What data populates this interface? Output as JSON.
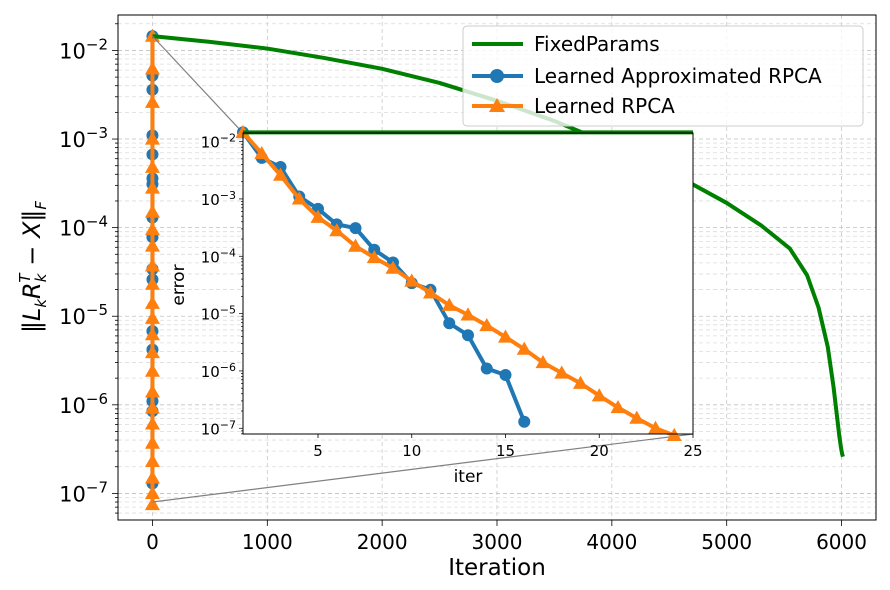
{
  "chart_data": [
    {
      "type": "line",
      "role": "main",
      "xlabel": "Iteration",
      "ylabel_parts": {
        "open": "‖L",
        "k1": "k",
        "R": "R",
        "kT_k": "k",
        "kT_T": "T",
        "minus": " − X‖",
        "F": "F"
      },
      "xlim": [
        -300,
        6300
      ],
      "ylim_log10": [
        -7.3,
        -1.6
      ],
      "xticks": [
        0,
        1000,
        2000,
        3000,
        4000,
        5000,
        6000
      ],
      "yticks_exponents": [
        -2,
        -3,
        -4,
        -5,
        -6,
        -7
      ],
      "grid": true,
      "legend_position": "top-right",
      "series": [
        {
          "name": "FixedParams",
          "color": "#008000",
          "marker": "none",
          "x": [
            0,
            500,
            1000,
            1500,
            2000,
            2500,
            3000,
            3500,
            4000,
            4500,
            5000,
            5300,
            5550,
            5700,
            5800,
            5880,
            5930,
            5960,
            5980,
            5995,
            6005,
            6012
          ],
          "y": [
            0.0145,
            0.0125,
            0.0105,
            0.0082,
            0.0062,
            0.0043,
            0.0027,
            0.0016,
            0.00086,
            0.00043,
            0.00019,
            0.000106,
            5.8e-05,
            2.9e-05,
            1.25e-05,
            4.5e-06,
            1.6e-06,
            7.5e-07,
            4.5e-07,
            3.3e-07,
            2.8e-07,
            2.6e-07
          ]
        },
        {
          "name": "Learned Approximated RPCA",
          "color": "#1f77b4",
          "marker": "circle",
          "x": [
            0,
            0,
            0,
            0,
            0,
            0,
            0,
            0,
            0,
            0,
            0,
            0,
            0,
            0,
            0,
            0
          ],
          "y": [
            0.0145,
            0.0052,
            0.0036,
            0.0011,
            0.00067,
            0.00036,
            0.00031,
            0.00013,
            7.8e-05,
            3.4e-05,
            2.6e-05,
            6.8e-06,
            4.2e-06,
            1.1e-06,
            8.5e-07,
            1.3e-07
          ]
        },
        {
          "name": "Learned RPCA",
          "color": "#ff7f0e",
          "marker": "triangle",
          "x": [
            0,
            0,
            0,
            0,
            0,
            0,
            0,
            0,
            0,
            0,
            0,
            0,
            0,
            0,
            0,
            0,
            0,
            0,
            0,
            0,
            0,
            0,
            0,
            0
          ],
          "y": [
            0.0145,
            0.0062,
            0.0026,
            0.001,
            0.00048,
            0.00028,
            0.00015,
            9.5e-05,
            6.2e-05,
            3.7e-05,
            2.3e-05,
            1.4e-05,
            9.5e-06,
            6.2e-06,
            3.9e-06,
            2.4e-06,
            1.4e-06,
            9.2e-07,
            6.1e-07,
            3.7e-07,
            2.3e-07,
            1.5e-07,
            1e-07,
            7.5e-08
          ]
        }
      ]
    },
    {
      "type": "line",
      "role": "inset",
      "xlabel": "iter",
      "ylabel": "error",
      "xlim": [
        1,
        25
      ],
      "ylim_log10": [
        -7.1,
        -1.85
      ],
      "xticks": [
        5,
        10,
        15,
        20,
        25
      ],
      "yticks_exponents": [
        -2,
        -3,
        -4,
        -5,
        -6,
        -7
      ],
      "series": [
        {
          "name": "FixedParams",
          "color": "#008000",
          "marker": "none",
          "x": [
            1,
            25
          ],
          "y": [
            0.0145,
            0.0145
          ]
        },
        {
          "name": "Learned Approximated RPCA",
          "color": "#1f77b4",
          "marker": "circle",
          "x": [
            1,
            2,
            3,
            4,
            5,
            6,
            7,
            8,
            9,
            10,
            11,
            12,
            13,
            14,
            15,
            16
          ],
          "y": [
            0.0145,
            0.0052,
            0.0036,
            0.0011,
            0.00067,
            0.00036,
            0.00031,
            0.00013,
            7.8e-05,
            3.4e-05,
            2.6e-05,
            6.8e-06,
            4.2e-06,
            1.1e-06,
            8.5e-07,
            1.3e-07
          ]
        },
        {
          "name": "Learned RPCA",
          "color": "#ff7f0e",
          "marker": "triangle",
          "x": [
            1,
            2,
            3,
            4,
            5,
            6,
            7,
            8,
            9,
            10,
            11,
            12,
            13,
            14,
            15,
            16,
            17,
            18,
            19,
            20,
            21,
            22,
            23,
            24
          ],
          "y": [
            0.0145,
            0.0062,
            0.0026,
            0.001,
            0.00048,
            0.00028,
            0.00015,
            9.5e-05,
            6.2e-05,
            3.7e-05,
            2.3e-05,
            1.4e-05,
            9.5e-06,
            6.2e-06,
            3.9e-06,
            2.4e-06,
            1.4e-06,
            9.2e-07,
            6.1e-07,
            3.7e-07,
            2.3e-07,
            1.5e-07,
            1e-07,
            7.5e-08
          ]
        }
      ]
    }
  ]
}
